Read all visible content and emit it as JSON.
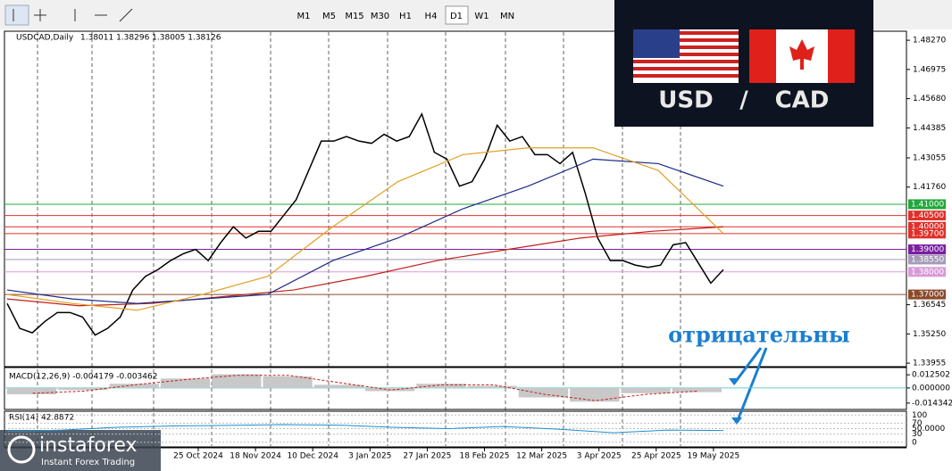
{
  "chart_data": {
    "type": "line",
    "title": "USDCAD,Daily",
    "quote": "1.38011 1.38296 1.38005 1.38126",
    "timeframes": [
      "M1",
      "M5",
      "M15",
      "M30",
      "H1",
      "H4",
      "D1",
      "W1",
      "MN"
    ],
    "x_labels": [
      "25 Oct 2024",
      "18 Nov 2024",
      "10 Dec 2024",
      "3 Jan 2025",
      "27 Jan 2025",
      "18 Feb 2025",
      "12 Mar 2025",
      "3 Apr 2025",
      "25 Apr 2025",
      "19 May 2025"
    ],
    "ylim": [
      1.3384,
      1.4867
    ],
    "yticks": [
      {
        "value": 1.4827,
        "label": "1.48270"
      },
      1.46975,
      {
        "value": 1.4568,
        "label": "1.45680"
      },
      1.44385,
      1.43055,
      {
        "value": 1.4176,
        "label": "1.41760"
      },
      1.36545,
      {
        "value": 1.3525,
        "label": "1.35250"
      },
      1.33955
    ],
    "levels": [
      {
        "value": 1.41,
        "label": "1.41000",
        "color": "#1fa83a"
      },
      {
        "value": 1.405,
        "label": "1.40500",
        "color": "#e0302a"
      },
      {
        "value": 1.4,
        "label": "1.40000",
        "color": "#e0302a"
      },
      {
        "value": 1.397,
        "label": "1.39700",
        "color": "#e0302a"
      },
      {
        "value": 1.39,
        "label": "1.39000",
        "color": "#7a1fa0"
      },
      {
        "value": 1.3855,
        "label": "1.38550",
        "color": "#a59ab8"
      },
      {
        "value": 1.38,
        "label": "1.38000",
        "color": "#d89ad8"
      },
      {
        "value": 1.37,
        "label": "1.37000",
        "color": "#8b4a2a"
      }
    ],
    "series": [
      {
        "color": "#000000",
        "values": [
          1.366,
          1.355,
          1.353,
          1.358,
          1.362,
          1.362,
          1.36,
          1.352,
          1.355,
          1.36,
          1.372,
          1.378,
          1.381,
          1.385,
          1.388,
          1.39,
          1.385,
          1.393,
          1.4,
          1.395,
          1.398,
          1.398,
          1.405,
          1.412,
          1.425,
          1.438,
          1.438,
          1.44,
          1.438,
          1.437,
          1.441,
          1.438,
          1.44,
          1.45,
          1.433,
          1.43,
          1.418,
          1.42,
          1.43,
          1.445,
          1.438,
          1.44,
          1.432,
          1.432,
          1.428,
          1.433,
          1.415,
          1.395,
          1.385,
          1.385,
          1.383,
          1.382,
          1.383,
          1.392,
          1.393,
          1.384,
          1.375,
          1.381
        ]
      },
      {
        "color": "#c0201a",
        "values": [
          1.368,
          1.365,
          1.366,
          1.369,
          1.372,
          1.378,
          1.385,
          1.39,
          1.395,
          1.398,
          1.4
        ]
      },
      {
        "color": "#1a2a8a",
        "values": [
          1.372,
          1.368,
          1.366,
          1.368,
          1.37,
          1.385,
          1.395,
          1.408,
          1.418,
          1.43,
          1.428,
          1.418
        ]
      },
      {
        "color": "#e0a020",
        "values": [
          1.37,
          1.366,
          1.363,
          1.37,
          1.378,
          1.4,
          1.42,
          1.432,
          1.435,
          1.435,
          1.425,
          1.397
        ]
      }
    ],
    "macd": {
      "title": "MACD(12,26,9) -0.004179 -0.003462",
      "ylim": [
        -0.0204,
        0.0194
      ],
      "yticks": [
        0.012502,
        {
          "value": 0,
          "label": "0.000000"
        },
        -0.014342
      ],
      "histogram": [
        -0.006,
        -0.002,
        0.004,
        0.009,
        0.013,
        0.011,
        0.003,
        -0.003,
        0.004,
        0.002,
        -0.009,
        -0.013,
        -0.005,
        -0.004
      ],
      "signal": [
        -0.005,
        -0.003,
        0.003,
        0.008,
        0.012,
        0.012,
        0.005,
        -0.002,
        0.003,
        0.003,
        -0.006,
        -0.012,
        -0.006,
        -0.003
      ]
    },
    "rsi": {
      "title": "RSI(14) 42.8872",
      "ylim": [
        -17,
        114
      ],
      "yticks": [
        100,
        70,
        {
          "value": 50,
          "label": "50.0000"
        },
        30,
        0
      ],
      "values": [
        40,
        45,
        55,
        60,
        62,
        65,
        63,
        55,
        50,
        58,
        48,
        35,
        45,
        43
      ]
    },
    "badge": [
      "USD",
      "/",
      "CAD"
    ],
    "annotation": "отрицательны",
    "logo": "instaforex",
    "logo_sub": "Instant Forex Trading"
  }
}
